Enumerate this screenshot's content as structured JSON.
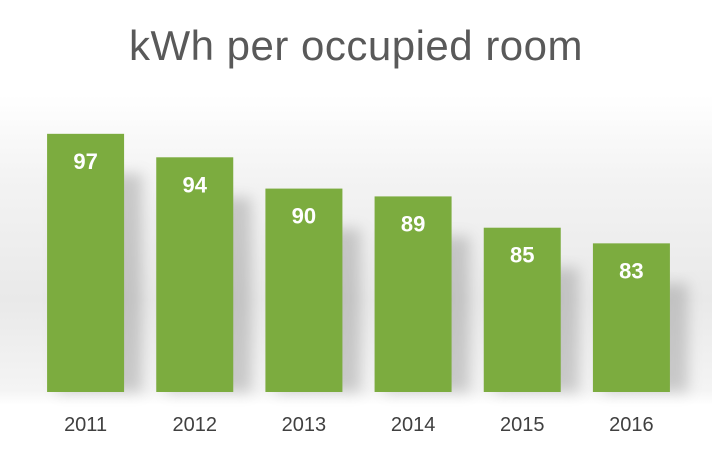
{
  "chart_data": {
    "type": "bar",
    "title": "kWh per occupied room",
    "xlabel": "",
    "ylabel": "",
    "categories": [
      "2011",
      "2012",
      "2013",
      "2014",
      "2015",
      "2016"
    ],
    "values": [
      97,
      94,
      90,
      89,
      85,
      83
    ],
    "ylim": [
      64,
      98
    ],
    "grid": false,
    "legend": "none",
    "data_labels": true,
    "bar_color": "#7cac3f",
    "label_color": "#ffffff"
  }
}
